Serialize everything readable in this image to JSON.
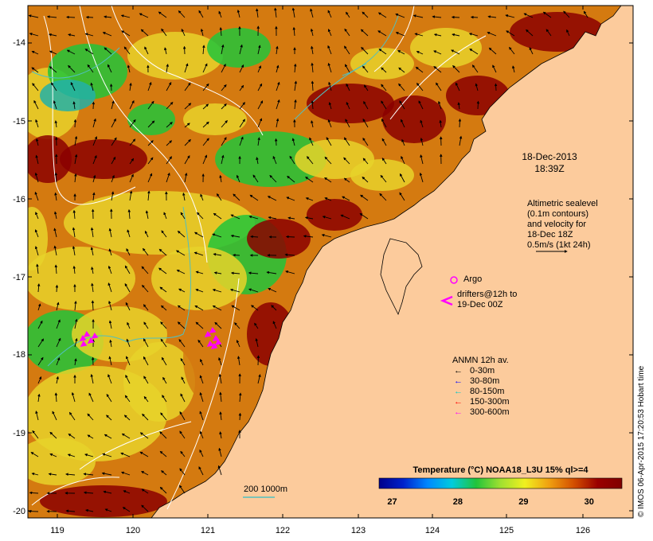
{
  "map": {
    "x_ticks": [
      "119",
      "120",
      "121",
      "122",
      "123",
      "124",
      "125",
      "126"
    ],
    "y_ticks": [
      "-14",
      "-15",
      "-16",
      "-17",
      "-18",
      "-19",
      "-20"
    ],
    "lon_range": [
      118.6,
      126.7
    ],
    "lat_range": [
      -20.1,
      -13.5
    ],
    "colors": {
      "land": "#fccb9c",
      "sst_hot": "#8b0000",
      "sst_orange": "#d47a10",
      "sst_yellow": "#e8d22a",
      "sst_green": "#22c43a",
      "sst_cyan": "#22b0a8",
      "contour": "#ffffff",
      "isobath": "#50c0c0"
    }
  },
  "annotations": {
    "date": "18-Dec-2013",
    "time": "18:39Z",
    "sealevel_line1": "Altimetric sealevel",
    "sealevel_line2": "(0.1m contours)",
    "sealevel_line3": "and velocity for",
    "sealevel_line4": "18-Dec 18Z",
    "sealevel_line5": "0.5m/s (1kt 24h)",
    "argo_label": "Argo",
    "drifters_line1": "drifters@12h to",
    "drifters_line2": "19-Dec 00Z",
    "anmn_title": "ANMN 12h av.",
    "isobath_label": "200  1000m"
  },
  "legend": {
    "items": [
      {
        "label": "0-30m",
        "color": "#000000"
      },
      {
        "label": "30-80m",
        "color": "#0000ff"
      },
      {
        "label": "80-150m",
        "color": "#00c8c8"
      },
      {
        "label": "150-300m",
        "color": "#ff0000"
      },
      {
        "label": "300-600m",
        "color": "#ff00ff"
      }
    ]
  },
  "colorbar": {
    "title": "Temperature (°C) NOAA18_L3U 15% ql>=4",
    "ticks": [
      "27",
      "28",
      "29",
      "30"
    ],
    "tick_values": [
      27,
      28,
      29,
      30
    ],
    "range": [
      26.8,
      30.5
    ],
    "colors": [
      "#00008b",
      "#0022cc",
      "#0088ff",
      "#00ccdd",
      "#22c43a",
      "#a0e030",
      "#f0f020",
      "#f0a010",
      "#d45000",
      "#9a0000",
      "#800000"
    ]
  },
  "copyright": "© IMOS 06-Apr-2015 17:20:53 Hobart time"
}
